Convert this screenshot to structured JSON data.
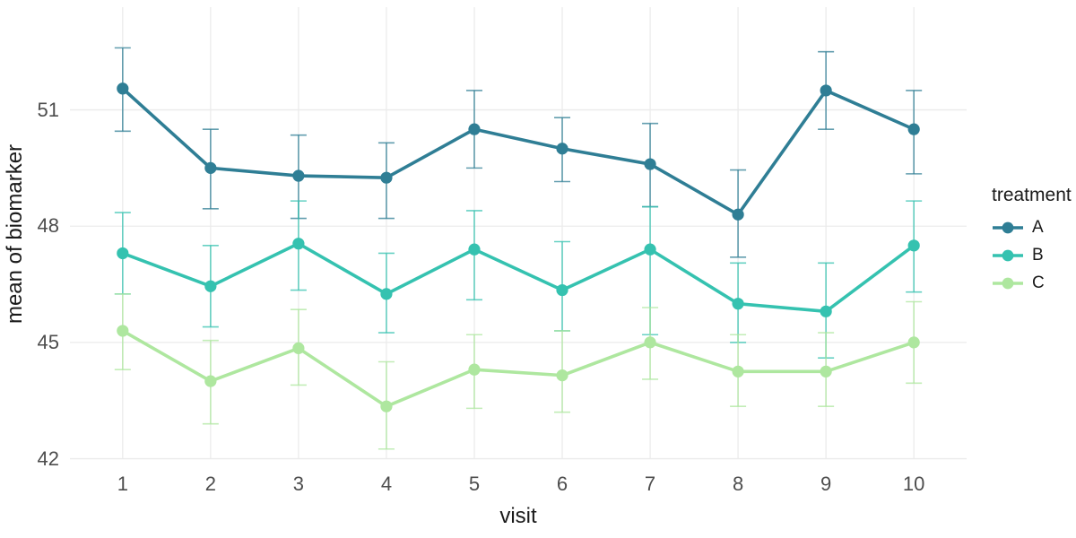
{
  "colors": {
    "background": "#ffffff",
    "grid": "#ebebeb",
    "tick_text": "#4d4d4d",
    "axis_title_text": "#1a1a1a"
  },
  "chart_data": {
    "type": "line",
    "title": "",
    "xlabel": "visit",
    "ylabel": "mean of biomarker",
    "legend_title": "treatment",
    "legend_position": "right",
    "grid": true,
    "error_bars": true,
    "x": [
      1,
      2,
      3,
      4,
      5,
      6,
      7,
      8,
      9,
      10
    ],
    "x_ticks": [
      "1",
      "2",
      "3",
      "4",
      "5",
      "6",
      "7",
      "8",
      "9",
      "10"
    ],
    "y_ticks": [
      42,
      45,
      48,
      51
    ],
    "xlim": [
      0.4,
      10.6
    ],
    "ylim": [
      41.99,
      53.65
    ],
    "series": [
      {
        "name": "A",
        "color": "#2f7e95",
        "values": [
          51.55,
          49.5,
          49.3,
          49.25,
          50.5,
          50.0,
          49.6,
          48.3,
          51.5,
          50.5
        ],
        "upper": [
          52.6,
          50.5,
          50.35,
          50.15,
          51.5,
          50.8,
          50.65,
          49.45,
          52.5,
          51.5
        ],
        "lower": [
          50.45,
          48.45,
          48.2,
          48.2,
          49.5,
          49.15,
          48.5,
          47.2,
          50.5,
          49.35
        ]
      },
      {
        "name": "B",
        "color": "#35c2b0",
        "values": [
          47.3,
          46.45,
          47.55,
          46.25,
          47.4,
          46.35,
          47.4,
          46.0,
          45.8,
          47.5
        ],
        "upper": [
          48.35,
          47.5,
          48.65,
          47.3,
          48.4,
          47.6,
          48.5,
          47.05,
          47.05,
          48.65
        ],
        "lower": [
          46.25,
          45.4,
          46.35,
          45.25,
          46.1,
          45.3,
          45.2,
          45.0,
          44.6,
          46.3
        ]
      },
      {
        "name": "C",
        "color": "#aee79f",
        "values": [
          45.3,
          44.0,
          44.85,
          43.35,
          44.3,
          44.15,
          45.0,
          44.25,
          44.25,
          45.0
        ],
        "upper": [
          46.25,
          45.05,
          45.85,
          44.5,
          45.2,
          45.3,
          45.9,
          45.2,
          45.25,
          46.05
        ],
        "lower": [
          44.3,
          42.9,
          43.9,
          42.25,
          43.3,
          43.2,
          44.05,
          43.35,
          43.35,
          43.95
        ]
      }
    ]
  }
}
